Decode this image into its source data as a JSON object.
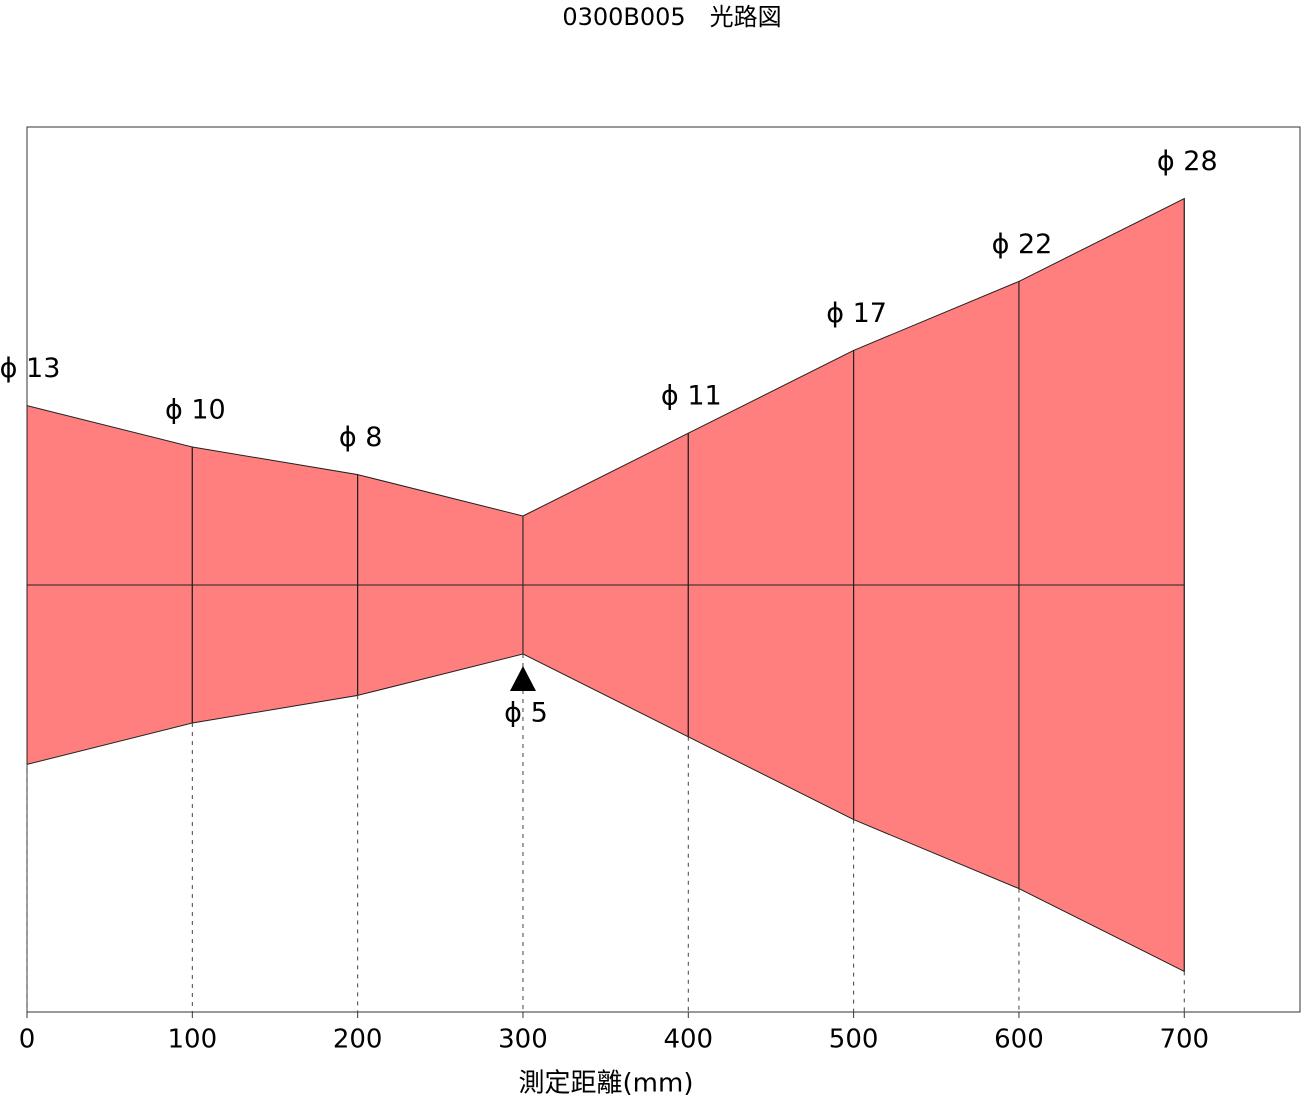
{
  "chart_data": {
    "type": "beam",
    "title": "0300B005　光路図",
    "x_label": "測定距離(mm)",
    "x": [
      0,
      100,
      200,
      300,
      400,
      500,
      600,
      700
    ],
    "values": [
      13,
      10,
      8,
      5,
      11,
      17,
      22,
      28
    ],
    "value_labels": [
      "ϕ 13",
      "ϕ 10",
      "ϕ 8",
      "ϕ 5",
      "ϕ 11",
      "ϕ 17",
      "ϕ 22",
      "ϕ 28"
    ],
    "xlim": [
      0,
      770
    ],
    "xticks": [
      0,
      100,
      200,
      300,
      400,
      500,
      600,
      700
    ],
    "color": "#ff7f7f"
  }
}
